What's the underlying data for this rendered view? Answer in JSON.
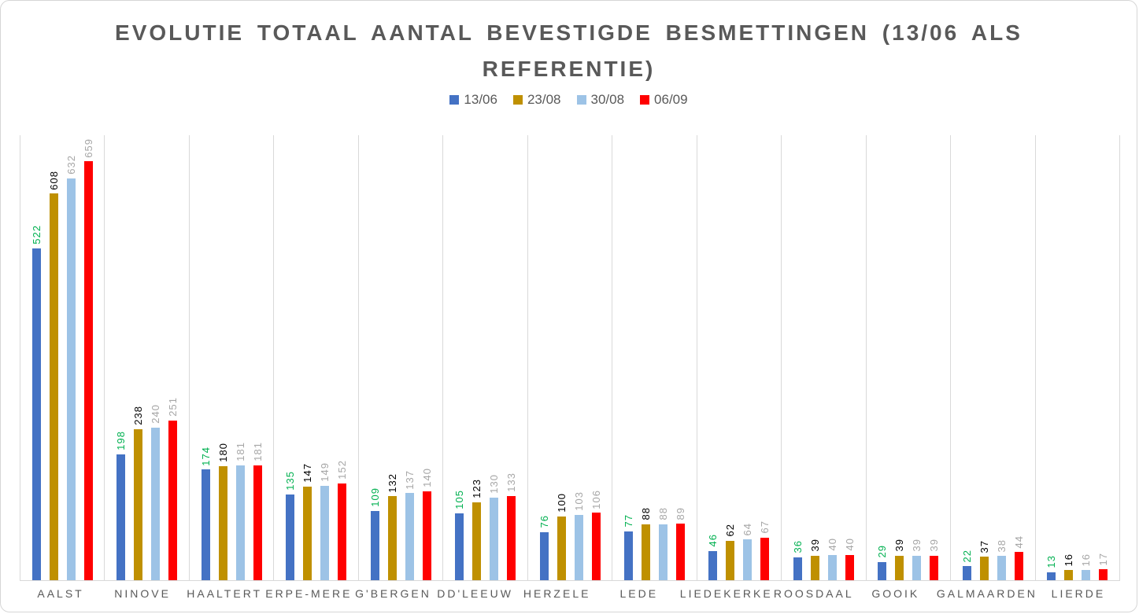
{
  "chart_data": {
    "type": "bar",
    "title": "EVOLUTIE TOTAAL AANTAL BEVESTIGDE BESMETTINGEN (13/06 ALS REFERENTIE)",
    "categories": [
      "AALST",
      "NINOVE",
      "HAALTERT",
      "ERPE-MERE",
      "G'BERGEN",
      "DD'LEEUW",
      "HERZELE",
      "LEDE",
      "LIEDEKERKE",
      "ROOSDAAL",
      "GOOIK",
      "GALMAARDEN",
      "LIERDE"
    ],
    "series": [
      {
        "name": "13/06",
        "color": "#4472c4",
        "label_color": "#00b050",
        "values": [
          522,
          198,
          174,
          135,
          109,
          105,
          76,
          77,
          46,
          36,
          29,
          22,
          13
        ]
      },
      {
        "name": "23/08",
        "color": "#bf9000",
        "label_color": "#000000",
        "values": [
          608,
          238,
          180,
          147,
          132,
          123,
          100,
          88,
          62,
          39,
          39,
          37,
          16
        ]
      },
      {
        "name": "30/08",
        "color": "#9dc3e6",
        "label_color": "#a6a6a6",
        "values": [
          632,
          240,
          181,
          149,
          137,
          130,
          103,
          88,
          64,
          40,
          39,
          38,
          16
        ]
      },
      {
        "name": "06/09",
        "color": "#ff0000",
        "label_color": "#a6a6a6",
        "values": [
          659,
          251,
          181,
          152,
          140,
          133,
          106,
          89,
          67,
          40,
          39,
          44,
          17
        ]
      }
    ],
    "ylim": [
      0,
      700
    ],
    "xlabel": "",
    "ylabel": "",
    "grid": "vertical category separator lines, no horizontal gridlines, no value axis",
    "legend_position": "top-center",
    "data_labels": "rotated 90deg above each bar",
    "colors": {
      "title_text": "#595959",
      "axis_text": "#595959",
      "legend_text": "#595959",
      "gridline": "#d9d9d9",
      "frame_border": "#d6d6d6",
      "background": "#ffffff"
    }
  }
}
